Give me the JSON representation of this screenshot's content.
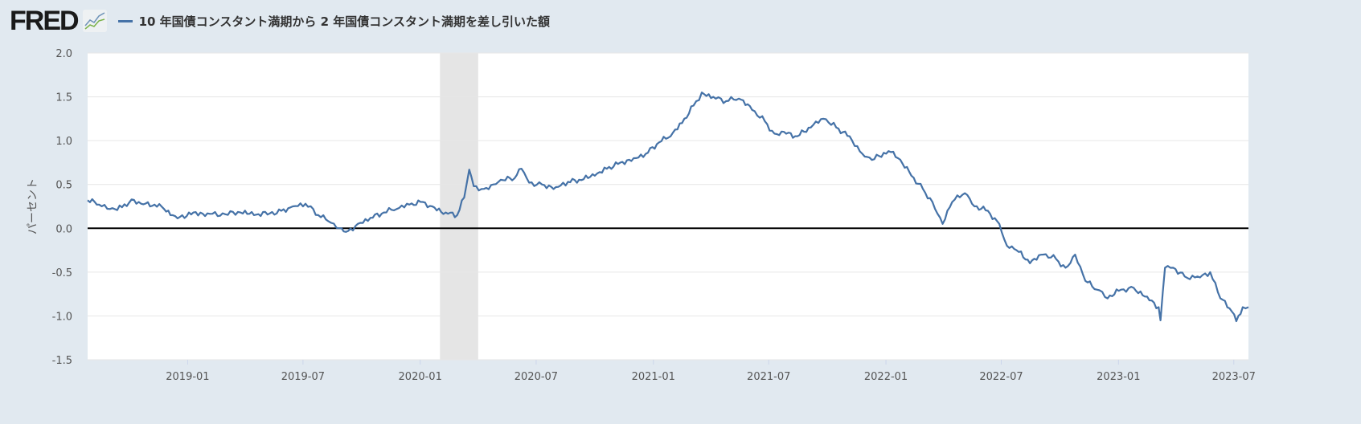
{
  "header": {
    "logo": "FRED",
    "logo_icon": "line-chart-icon",
    "series_title": "10 年国債コンスタント満期から 2 年国債コンスタント満期を差し引いた額"
  },
  "colors": {
    "series": "#4572a7",
    "recession": "#e5e5e5",
    "zero_line": "#000000",
    "background": "#e1e9f0",
    "plot": "#ffffff",
    "grid": "#e6e6e6"
  },
  "chart_data": {
    "type": "line",
    "title": "10 年国債コンスタント満期から 2 年国債コンスタント満期を差し引いた額",
    "ylabel": "パーセント",
    "xlabel": "",
    "ylim": [
      -1.5,
      2.0
    ],
    "xlim": [
      "2018-07-28",
      "2023-07-24"
    ],
    "yticks": [
      "2.0",
      "1.5",
      "1.0",
      "0.5",
      "0.0",
      "-0.5",
      "-1.0",
      "-1.5"
    ],
    "xticks": [
      "2019-01",
      "2019-07",
      "2020-01",
      "2020-07",
      "2021-01",
      "2021-07",
      "2022-01",
      "2022-07",
      "2023-01",
      "2023-07"
    ],
    "grid": true,
    "recession": [
      "2020-02-01",
      "2020-04-01"
    ],
    "series": [
      {
        "x": [
          "2018-07-28",
          "2018-08-15",
          "2018-09-01",
          "2018-09-20",
          "2018-10-05",
          "2018-10-20",
          "2018-11-10",
          "2018-11-25",
          "2018-12-05",
          "2018-12-20",
          "2019-01-10",
          "2019-02-01",
          "2019-03-01",
          "2019-03-25",
          "2019-04-15",
          "2019-05-10",
          "2019-05-28",
          "2019-06-15",
          "2019-07-05",
          "2019-07-25",
          "2019-08-10",
          "2019-08-27",
          "2019-09-10",
          "2019-09-25",
          "2019-10-15",
          "2019-11-05",
          "2019-11-25",
          "2019-12-15",
          "2020-01-05",
          "2020-01-20",
          "2020-02-10",
          "2020-02-28",
          "2020-03-10",
          "2020-03-18",
          "2020-03-25",
          "2020-04-10",
          "2020-04-25",
          "2020-05-10",
          "2020-05-28",
          "2020-06-08",
          "2020-06-20",
          "2020-07-10",
          "2020-08-01",
          "2020-08-20",
          "2020-09-10",
          "2020-10-01",
          "2020-10-20",
          "2020-11-10",
          "2020-12-01",
          "2020-12-20",
          "2021-01-10",
          "2021-01-28",
          "2021-02-15",
          "2021-03-05",
          "2021-03-18",
          "2021-04-05",
          "2021-04-25",
          "2021-05-15",
          "2021-06-05",
          "2021-06-25",
          "2021-07-10",
          "2021-07-25",
          "2021-08-15",
          "2021-09-05",
          "2021-09-25",
          "2021-10-15",
          "2021-11-05",
          "2021-11-25",
          "2021-12-10",
          "2022-01-05",
          "2022-01-20",
          "2022-02-10",
          "2022-02-28",
          "2022-03-15",
          "2022-03-31",
          "2022-04-15",
          "2022-05-05",
          "2022-05-20",
          "2022-06-10",
          "2022-06-28",
          "2022-07-10",
          "2022-07-25",
          "2022-08-15",
          "2022-09-05",
          "2022-09-25",
          "2022-10-10",
          "2022-10-25",
          "2022-11-10",
          "2022-11-28",
          "2022-12-15",
          "2023-01-05",
          "2023-01-25",
          "2023-02-15",
          "2023-03-05",
          "2023-03-08",
          "2023-03-15",
          "2023-03-28",
          "2023-04-15",
          "2023-05-05",
          "2023-05-25",
          "2023-06-10",
          "2023-06-28",
          "2023-07-05",
          "2023-07-15",
          "2023-07-24"
        ],
        "y": [
          0.32,
          0.27,
          0.22,
          0.24,
          0.33,
          0.28,
          0.27,
          0.22,
          0.15,
          0.13,
          0.18,
          0.17,
          0.16,
          0.18,
          0.15,
          0.17,
          0.2,
          0.25,
          0.28,
          0.15,
          0.08,
          0.0,
          -0.03,
          0.05,
          0.12,
          0.18,
          0.22,
          0.27,
          0.3,
          0.25,
          0.18,
          0.15,
          0.35,
          0.67,
          0.48,
          0.45,
          0.5,
          0.55,
          0.57,
          0.68,
          0.52,
          0.5,
          0.47,
          0.53,
          0.55,
          0.6,
          0.68,
          0.75,
          0.8,
          0.85,
          0.98,
          1.05,
          1.2,
          1.4,
          1.55,
          1.5,
          1.45,
          1.48,
          1.35,
          1.22,
          1.08,
          1.1,
          1.05,
          1.15,
          1.25,
          1.15,
          1.05,
          0.85,
          0.78,
          0.88,
          0.8,
          0.6,
          0.45,
          0.3,
          0.05,
          0.3,
          0.4,
          0.25,
          0.2,
          0.05,
          -0.2,
          -0.25,
          -0.4,
          -0.3,
          -0.35,
          -0.45,
          -0.3,
          -0.6,
          -0.7,
          -0.8,
          -0.7,
          -0.68,
          -0.78,
          -0.9,
          -1.05,
          -0.45,
          -0.45,
          -0.55,
          -0.55,
          -0.5,
          -0.8,
          -0.95,
          -1.06,
          -0.9,
          -0.9
        ]
      }
    ]
  }
}
